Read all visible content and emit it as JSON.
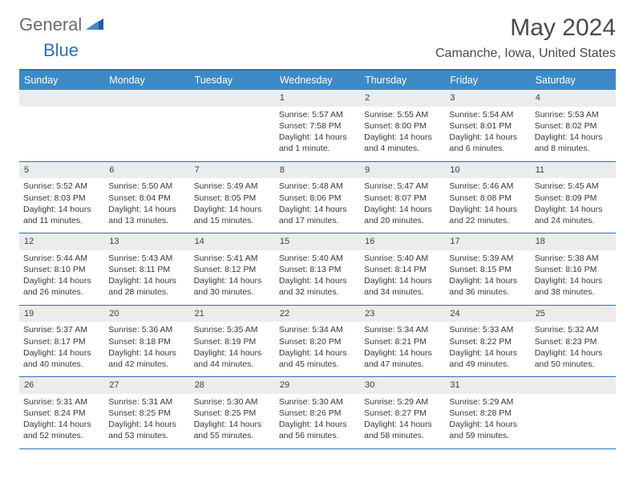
{
  "logo": {
    "general": "General",
    "blue": "Blue"
  },
  "title": "May 2024",
  "location": "Camanche, Iowa, United States",
  "colors": {
    "header_bg": "#3d8ac7",
    "border": "#2a71b8",
    "daynum_bg": "#ececec",
    "text": "#383838",
    "title_text": "#4a4a4a",
    "logo_gray": "#6a6a6a",
    "logo_blue": "#2a71b8"
  },
  "fonts": {
    "title_size_pt": 22,
    "location_size_pt": 12,
    "header_size_pt": 9.5,
    "body_size_pt": 8
  },
  "day_headers": [
    "Sunday",
    "Monday",
    "Tuesday",
    "Wednesday",
    "Thursday",
    "Friday",
    "Saturday"
  ],
  "weeks": [
    [
      {
        "n": "",
        "lines": []
      },
      {
        "n": "",
        "lines": []
      },
      {
        "n": "",
        "lines": []
      },
      {
        "n": "1",
        "lines": [
          "Sunrise: 5:57 AM",
          "Sunset: 7:58 PM",
          "Daylight: 14 hours and 1 minute."
        ]
      },
      {
        "n": "2",
        "lines": [
          "Sunrise: 5:55 AM",
          "Sunset: 8:00 PM",
          "Daylight: 14 hours and 4 minutes."
        ]
      },
      {
        "n": "3",
        "lines": [
          "Sunrise: 5:54 AM",
          "Sunset: 8:01 PM",
          "Daylight: 14 hours and 6 minutes."
        ]
      },
      {
        "n": "4",
        "lines": [
          "Sunrise: 5:53 AM",
          "Sunset: 8:02 PM",
          "Daylight: 14 hours and 8 minutes."
        ]
      }
    ],
    [
      {
        "n": "5",
        "lines": [
          "Sunrise: 5:52 AM",
          "Sunset: 8:03 PM",
          "Daylight: 14 hours and 11 minutes."
        ]
      },
      {
        "n": "6",
        "lines": [
          "Sunrise: 5:50 AM",
          "Sunset: 8:04 PM",
          "Daylight: 14 hours and 13 minutes."
        ]
      },
      {
        "n": "7",
        "lines": [
          "Sunrise: 5:49 AM",
          "Sunset: 8:05 PM",
          "Daylight: 14 hours and 15 minutes."
        ]
      },
      {
        "n": "8",
        "lines": [
          "Sunrise: 5:48 AM",
          "Sunset: 8:06 PM",
          "Daylight: 14 hours and 17 minutes."
        ]
      },
      {
        "n": "9",
        "lines": [
          "Sunrise: 5:47 AM",
          "Sunset: 8:07 PM",
          "Daylight: 14 hours and 20 minutes."
        ]
      },
      {
        "n": "10",
        "lines": [
          "Sunrise: 5:46 AM",
          "Sunset: 8:08 PM",
          "Daylight: 14 hours and 22 minutes."
        ]
      },
      {
        "n": "11",
        "lines": [
          "Sunrise: 5:45 AM",
          "Sunset: 8:09 PM",
          "Daylight: 14 hours and 24 minutes."
        ]
      }
    ],
    [
      {
        "n": "12",
        "lines": [
          "Sunrise: 5:44 AM",
          "Sunset: 8:10 PM",
          "Daylight: 14 hours and 26 minutes."
        ]
      },
      {
        "n": "13",
        "lines": [
          "Sunrise: 5:43 AM",
          "Sunset: 8:11 PM",
          "Daylight: 14 hours and 28 minutes."
        ]
      },
      {
        "n": "14",
        "lines": [
          "Sunrise: 5:41 AM",
          "Sunset: 8:12 PM",
          "Daylight: 14 hours and 30 minutes."
        ]
      },
      {
        "n": "15",
        "lines": [
          "Sunrise: 5:40 AM",
          "Sunset: 8:13 PM",
          "Daylight: 14 hours and 32 minutes."
        ]
      },
      {
        "n": "16",
        "lines": [
          "Sunrise: 5:40 AM",
          "Sunset: 8:14 PM",
          "Daylight: 14 hours and 34 minutes."
        ]
      },
      {
        "n": "17",
        "lines": [
          "Sunrise: 5:39 AM",
          "Sunset: 8:15 PM",
          "Daylight: 14 hours and 36 minutes."
        ]
      },
      {
        "n": "18",
        "lines": [
          "Sunrise: 5:38 AM",
          "Sunset: 8:16 PM",
          "Daylight: 14 hours and 38 minutes."
        ]
      }
    ],
    [
      {
        "n": "19",
        "lines": [
          "Sunrise: 5:37 AM",
          "Sunset: 8:17 PM",
          "Daylight: 14 hours and 40 minutes."
        ]
      },
      {
        "n": "20",
        "lines": [
          "Sunrise: 5:36 AM",
          "Sunset: 8:18 PM",
          "Daylight: 14 hours and 42 minutes."
        ]
      },
      {
        "n": "21",
        "lines": [
          "Sunrise: 5:35 AM",
          "Sunset: 8:19 PM",
          "Daylight: 14 hours and 44 minutes."
        ]
      },
      {
        "n": "22",
        "lines": [
          "Sunrise: 5:34 AM",
          "Sunset: 8:20 PM",
          "Daylight: 14 hours and 45 minutes."
        ]
      },
      {
        "n": "23",
        "lines": [
          "Sunrise: 5:34 AM",
          "Sunset: 8:21 PM",
          "Daylight: 14 hours and 47 minutes."
        ]
      },
      {
        "n": "24",
        "lines": [
          "Sunrise: 5:33 AM",
          "Sunset: 8:22 PM",
          "Daylight: 14 hours and 49 minutes."
        ]
      },
      {
        "n": "25",
        "lines": [
          "Sunrise: 5:32 AM",
          "Sunset: 8:23 PM",
          "Daylight: 14 hours and 50 minutes."
        ]
      }
    ],
    [
      {
        "n": "26",
        "lines": [
          "Sunrise: 5:31 AM",
          "Sunset: 8:24 PM",
          "Daylight: 14 hours and 52 minutes."
        ]
      },
      {
        "n": "27",
        "lines": [
          "Sunrise: 5:31 AM",
          "Sunset: 8:25 PM",
          "Daylight: 14 hours and 53 minutes."
        ]
      },
      {
        "n": "28",
        "lines": [
          "Sunrise: 5:30 AM",
          "Sunset: 8:25 PM",
          "Daylight: 14 hours and 55 minutes."
        ]
      },
      {
        "n": "29",
        "lines": [
          "Sunrise: 5:30 AM",
          "Sunset: 8:26 PM",
          "Daylight: 14 hours and 56 minutes."
        ]
      },
      {
        "n": "30",
        "lines": [
          "Sunrise: 5:29 AM",
          "Sunset: 8:27 PM",
          "Daylight: 14 hours and 58 minutes."
        ]
      },
      {
        "n": "31",
        "lines": [
          "Sunrise: 5:29 AM",
          "Sunset: 8:28 PM",
          "Daylight: 14 hours and 59 minutes."
        ]
      },
      {
        "n": "",
        "lines": []
      }
    ]
  ]
}
